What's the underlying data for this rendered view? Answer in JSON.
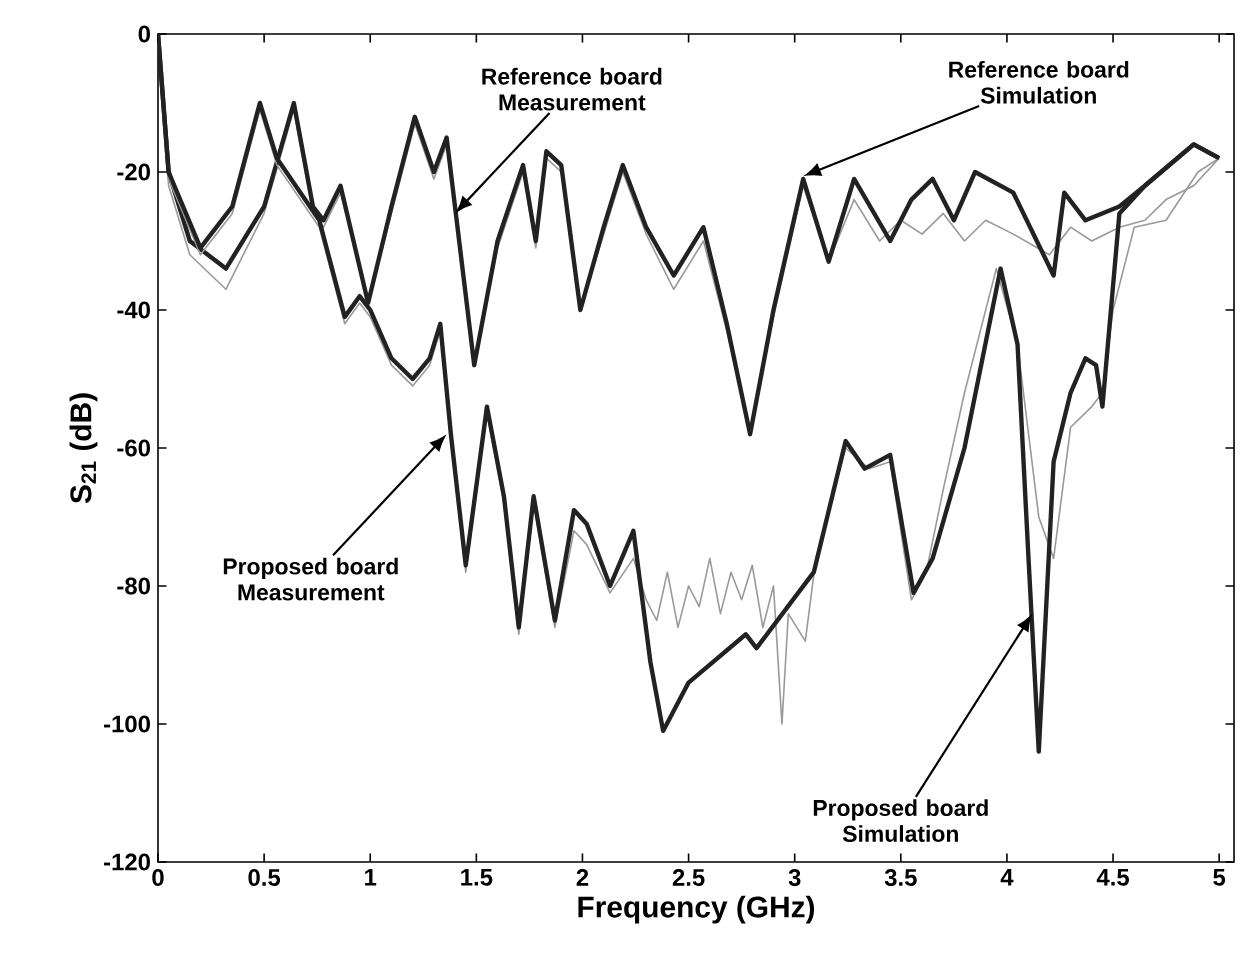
{
  "chart_data": {
    "type": "line",
    "xlabel": "Frequency (GHz)",
    "ylabel": "S$_{21}$ (dB)",
    "xlim": [
      0,
      5.07
    ],
    "ylim": [
      -120,
      0
    ],
    "xticks": [
      0,
      0.5,
      1,
      1.5,
      2,
      2.5,
      3,
      3.5,
      4,
      4.5,
      5
    ],
    "yticks": [
      -120,
      -100,
      -80,
      -60,
      -40,
      -20,
      0
    ],
    "grid": false,
    "marker": "none",
    "series": [
      {
        "color": "#999999",
        "x": [
          0,
          0.05,
          0.15,
          0.32,
          0.5,
          0.64,
          0.73,
          0.78,
          0.86,
          0.99,
          1.1,
          1.21,
          1.3,
          1.36,
          1.49,
          1.6,
          1.72,
          1.78,
          1.83,
          1.9,
          1.99,
          2.1,
          2.19,
          2.3,
          2.43,
          2.57,
          2.68,
          2.79,
          2.9,
          3.04,
          3.16,
          3.28,
          3.4,
          3.5,
          3.6,
          3.7,
          3.8,
          3.9,
          4.03,
          4.2,
          4.3,
          4.4,
          4.53,
          4.65,
          4.75,
          4.88,
          5.0
        ],
        "values": [
          0,
          -22,
          -32,
          -37,
          -26,
          -11,
          -26,
          -28,
          -23,
          -39,
          -26,
          -13,
          -21,
          -16,
          -48,
          -31,
          -20,
          -31,
          -18,
          -20,
          -40,
          -29,
          -20,
          -29,
          -37,
          -30,
          -43,
          -58,
          -41,
          -22,
          -33,
          -24,
          -30,
          -27,
          -29,
          -26,
          -30,
          -27,
          -29,
          -32,
          -28,
          -30,
          -28,
          -27,
          -24,
          -22,
          -18
        ]
      },
      {
        "color": "#222222",
        "x": [
          0,
          0.05,
          0.15,
          0.32,
          0.5,
          0.64,
          0.73,
          0.78,
          0.86,
          0.99,
          1.1,
          1.21,
          1.3,
          1.36,
          1.49,
          1.6,
          1.72,
          1.78,
          1.83,
          1.9,
          1.99,
          2.1,
          2.19,
          2.3,
          2.43,
          2.57,
          2.68,
          2.79,
          2.9,
          3.04,
          3.16,
          3.28,
          3.45,
          3.55,
          3.65,
          3.75,
          3.85,
          4.03,
          4.22,
          4.27,
          4.37,
          4.53,
          4.65,
          4.88,
          5.0
        ],
        "values": [
          0,
          -20,
          -30,
          -34,
          -25,
          -10,
          -25,
          -27,
          -22,
          -39,
          -25,
          -12,
          -20,
          -15,
          -48,
          -30,
          -19,
          -30,
          -17,
          -19,
          -40,
          -28,
          -19,
          -28,
          -35,
          -28,
          -42,
          -58,
          -40,
          -21,
          -33,
          -21,
          -30,
          -24,
          -21,
          -27,
          -20,
          -23,
          -35,
          -23,
          -27,
          -25,
          -22,
          -16,
          -18
        ]
      },
      {
        "color": "#999999",
        "x": [
          0,
          0.05,
          0.2,
          0.35,
          0.48,
          0.56,
          0.76,
          0.88,
          0.95,
          1.0,
          1.1,
          1.2,
          1.28,
          1.33,
          1.38,
          1.45,
          1.55,
          1.63,
          1.7,
          1.77,
          1.87,
          1.96,
          2.02,
          2.13,
          2.24,
          2.3,
          2.35,
          2.4,
          2.45,
          2.5,
          2.55,
          2.6,
          2.65,
          2.7,
          2.75,
          2.8,
          2.85,
          2.9,
          2.94,
          2.97,
          3.05,
          3.1,
          3.24,
          3.35,
          3.45,
          3.55,
          3.62,
          3.7,
          3.8,
          3.95,
          4.05,
          4.15,
          4.22,
          4.3,
          4.4,
          4.45,
          4.5,
          4.6,
          4.75,
          4.9,
          5.0
        ],
        "values": [
          0,
          -21,
          -32,
          -26,
          -11,
          -19,
          -28,
          -42,
          -39,
          -41,
          -48,
          -51,
          -48,
          -43,
          -59,
          -78,
          -55,
          -68,
          -87,
          -68,
          -86,
          -72,
          -74,
          -81,
          -76,
          -82,
          -85,
          -78,
          -86,
          -80,
          -83,
          -76,
          -84,
          -78,
          -82,
          -77,
          -86,
          -80,
          -100,
          -84,
          -88,
          -76,
          -60,
          -63,
          -62,
          -82,
          -78,
          -66,
          -52,
          -34,
          -45,
          -70,
          -76,
          -57,
          -54,
          -52,
          -40,
          -28,
          -27,
          -20,
          -18
        ]
      },
      {
        "color": "#222222",
        "x": [
          0,
          0.05,
          0.2,
          0.35,
          0.48,
          0.56,
          0.76,
          0.88,
          0.95,
          1.0,
          1.1,
          1.2,
          1.28,
          1.33,
          1.38,
          1.45,
          1.55,
          1.63,
          1.7,
          1.77,
          1.87,
          1.96,
          2.02,
          2.13,
          2.24,
          2.32,
          2.38,
          2.5,
          2.77,
          2.82,
          3.09,
          3.24,
          3.33,
          3.45,
          3.56,
          3.65,
          3.8,
          3.97,
          4.05,
          4.1,
          4.15,
          4.22,
          4.3,
          4.37,
          4.42,
          4.45,
          4.53,
          4.65,
          4.88,
          5.0
        ],
        "values": [
          0,
          -20,
          -31,
          -25,
          -10,
          -18,
          -27,
          -41,
          -38,
          -40,
          -47,
          -50,
          -47,
          -42,
          -58,
          -77,
          -54,
          -67,
          -86,
          -67,
          -85,
          -69,
          -71,
          -80,
          -72,
          -91,
          -101,
          -94,
          -87,
          -89,
          -78,
          -59,
          -63,
          -61,
          -81,
          -76,
          -60,
          -34,
          -45,
          -75,
          -104,
          -62,
          -52,
          -47,
          -48,
          -54,
          -26,
          -22,
          -16,
          -18
        ]
      }
    ],
    "annotations": [
      {
        "text": "Reference board Measurement",
        "x": 1.4,
        "y": -26
      },
      {
        "text": "Reference board Simulation",
        "x": 3.04,
        "y": -20.6
      },
      {
        "text": "Proposed board Measurement",
        "x": 1.36,
        "y": -58
      },
      {
        "text": "Proposed board Simulation",
        "x": 4.12,
        "y": -84
      }
    ]
  }
}
